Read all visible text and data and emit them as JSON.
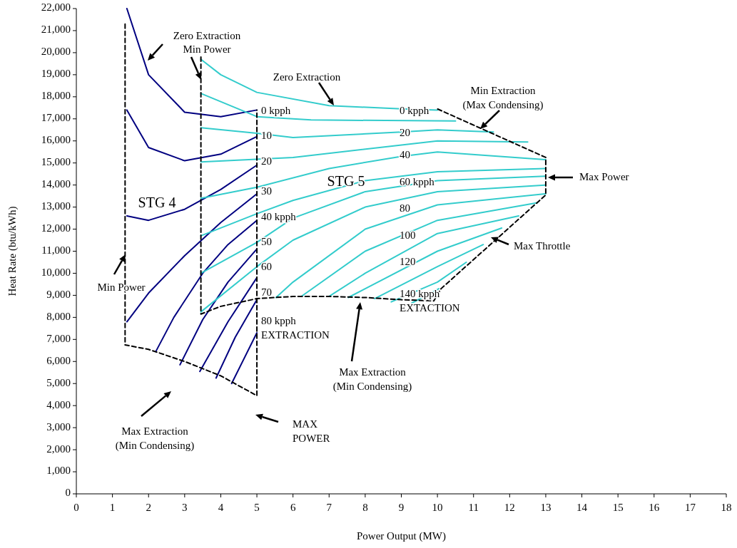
{
  "chart_data": {
    "type": "line",
    "xlabel": "Power Output (MW)",
    "ylabel": "Heat Rate (btu/kWh)",
    "xlim": [
      0,
      18
    ],
    "xticks": [
      0,
      1,
      2,
      3,
      4,
      5,
      6,
      7,
      8,
      9,
      10,
      11,
      12,
      13,
      14,
      15,
      16,
      17,
      18
    ],
    "ylim": [
      0,
      22000
    ],
    "yticks": [
      0,
      {
        "value": 1000,
        "label": "1,000"
      },
      {
        "value": 2000,
        "label": "2,000"
      },
      {
        "value": 3000,
        "label": "3,000"
      },
      {
        "value": 4000,
        "label": "4,000"
      },
      {
        "value": 5000,
        "label": "5,000"
      },
      {
        "value": 6000,
        "label": "6,000"
      },
      {
        "value": 7000,
        "label": "7,000"
      },
      {
        "value": 8000,
        "label": "8,000"
      },
      {
        "value": 9000,
        "label": "9,000"
      },
      {
        "value": 10000,
        "label": "10,000"
      },
      {
        "value": 11000,
        "label": "11,000"
      },
      {
        "value": 12000,
        "label": "12,000"
      },
      {
        "value": 13000,
        "label": "13,000"
      },
      {
        "value": 14000,
        "label": "14,000"
      },
      {
        "value": 15000,
        "label": "15,000"
      },
      {
        "value": 16000,
        "label": "16,000"
      },
      {
        "value": 17000,
        "label": "17,000"
      },
      {
        "value": 18000,
        "label": "18,000"
      },
      {
        "value": 19000,
        "label": "19,000"
      },
      {
        "value": 20000,
        "label": "20,000"
      },
      {
        "value": 21000,
        "label": "21,000"
      },
      {
        "value": 22000,
        "label": "22,000"
      }
    ],
    "grid": false,
    "marker": "none",
    "line_style": "solid",
    "series": [
      {
        "color": "#000080",
        "x": [
          1.4,
          2,
          3,
          4,
          5
        ],
        "values": [
          22000,
          19000,
          17300,
          17100,
          17400
        ]
      },
      {
        "color": "#000080",
        "x": [
          1.4,
          2,
          3,
          4,
          5
        ],
        "values": [
          17400,
          15700,
          15100,
          15400,
          16200
        ]
      },
      {
        "color": "#000080",
        "x": [
          1.4,
          2,
          3,
          4,
          5
        ],
        "values": [
          12600,
          12400,
          12900,
          13800,
          14900
        ]
      },
      {
        "color": "#000080",
        "x": [
          1.4,
          2,
          3,
          4,
          5
        ],
        "values": [
          7800,
          9100,
          10800,
          12300,
          13600
        ]
      },
      {
        "color": "#000080",
        "x": [
          2.2,
          2.7,
          3.5,
          4.2,
          5
        ],
        "values": [
          6450,
          8000,
          10000,
          11300,
          12400
        ]
      },
      {
        "color": "#000080",
        "x": [
          2.87,
          3.5,
          4.2,
          5
        ],
        "values": [
          5850,
          7900,
          9600,
          11100
        ]
      },
      {
        "color": "#000080",
        "x": [
          3.42,
          4.2,
          5
        ],
        "values": [
          5550,
          7800,
          9800
        ]
      },
      {
        "color": "#000080",
        "x": [
          3.87,
          4.4,
          5
        ],
        "values": [
          5250,
          7100,
          8800
        ]
      },
      {
        "color": "#000080",
        "x": [
          4.3,
          5
        ],
        "values": [
          5000,
          7300
        ]
      },
      {
        "color": "#33cccc",
        "x": [
          3.45,
          4,
          5,
          7,
          9,
          10
        ],
        "values": [
          19700,
          19000,
          18200,
          17600,
          17450,
          17400
        ]
      },
      {
        "color": "#33cccc",
        "x": [
          3.45,
          5,
          6.5,
          10.5
        ],
        "values": [
          18150,
          17100,
          16950,
          16900
        ]
      },
      {
        "color": "#33cccc",
        "x": [
          3.45,
          5,
          6,
          9,
          10,
          11.55
        ],
        "values": [
          16600,
          16350,
          16150,
          16400,
          16500,
          16400
        ]
      },
      {
        "color": "#33cccc",
        "x": [
          3.45,
          6,
          8.4,
          10,
          12.5
        ],
        "values": [
          15050,
          15250,
          15700,
          16000,
          15950
        ]
      },
      {
        "color": "#33cccc",
        "x": [
          3.45,
          5,
          7,
          9,
          10,
          13
        ],
        "values": [
          13400,
          13900,
          14750,
          15300,
          15500,
          15150
        ]
      },
      {
        "color": "#33cccc",
        "x": [
          3.45,
          5,
          6,
          8,
          10,
          13
        ],
        "values": [
          11700,
          12700,
          13300,
          14200,
          14600,
          14750
        ]
      },
      {
        "color": "#33cccc",
        "x": [
          3.45,
          5,
          6,
          8,
          10,
          13
        ],
        "values": [
          10000,
          11400,
          12500,
          13700,
          14200,
          14400
        ]
      },
      {
        "color": "#33cccc",
        "x": [
          3.45,
          5,
          6,
          8,
          10,
          13
        ],
        "values": [
          8250,
          10300,
          11500,
          13000,
          13700,
          14000
        ]
      },
      {
        "color": "#33cccc",
        "x": [
          5.53,
          6,
          8,
          10,
          13
        ],
        "values": [
          8900,
          9600,
          12000,
          13100,
          13600
        ]
      },
      {
        "color": "#33cccc",
        "x": [
          6.23,
          8,
          10,
          12.77
        ],
        "values": [
          8950,
          11000,
          12400,
          13200
        ]
      },
      {
        "color": "#33cccc",
        "x": [
          7,
          8,
          10,
          12.25
        ],
        "values": [
          8950,
          10000,
          11800,
          12600
        ]
      },
      {
        "color": "#33cccc",
        "x": [
          7.53,
          8,
          10,
          11.78
        ],
        "values": [
          8900,
          9300,
          11000,
          12050
        ]
      },
      {
        "color": "#33cccc",
        "x": [
          8.26,
          10,
          11.27
        ],
        "values": [
          8850,
          10300,
          11300
        ]
      },
      {
        "color": "#33cccc",
        "x": [
          8.72,
          10,
          10.8
        ],
        "values": [
          8700,
          9600,
          10500
        ]
      },
      {
        "color": "#33cccc",
        "x": [
          9.29,
          10.04
        ],
        "values": [
          8650,
          9300
        ]
      },
      {
        "color": "#000000",
        "line_style": "dashed",
        "x": [
          1.35,
          1.35,
          2,
          3,
          4,
          5,
          5
        ],
        "values": [
          21300,
          6750,
          6550,
          6000,
          5350,
          4450,
          17400
        ]
      },
      {
        "color": "#000000",
        "line_style": "dashed",
        "x": [
          3.45,
          3.45,
          4,
          5,
          6,
          7,
          8,
          9,
          9.9,
          10.1,
          13,
          13,
          10
        ],
        "values": [
          19800,
          8150,
          8500,
          8850,
          8950,
          8950,
          8900,
          8800,
          8750,
          9300,
          13550,
          15250,
          17450
        ]
      }
    ],
    "annotations": [
      "Zero Extraction",
      "Min Power",
      "Zero Extraction",
      "Min Extraction\n(Max Condensing)",
      "Max Power",
      "Max Throttle",
      "Max Extraction\n(Min Condensing)",
      "Min Power",
      "Max Extraction\n(Min Condensing)",
      "MAX\nPOWER",
      "STG 4",
      "STG 5",
      "0 kpph",
      "10",
      "20",
      "30",
      "40 kpph",
      "50",
      "60",
      "70",
      "80 kpph\nEXTRACTION",
      "0 kpph",
      "20",
      "40",
      "60 kpph",
      "80",
      "100",
      "120",
      "140 kpph\nEXTACTION"
    ]
  }
}
